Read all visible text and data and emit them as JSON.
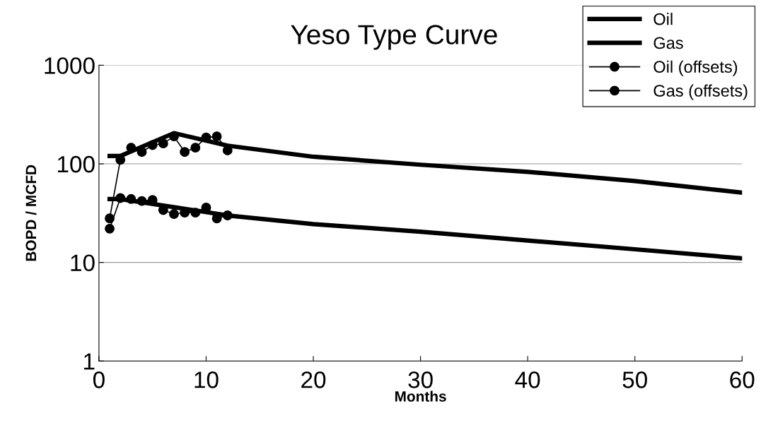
{
  "chart_data": {
    "type": "line",
    "title": "Yeso Type Curve",
    "xlabel": "Months",
    "ylabel": "BOPD / MCFD",
    "log": true,
    "xlim": [
      0,
      60
    ],
    "xticks": [
      0,
      10,
      20,
      30,
      40,
      50,
      60
    ],
    "ylim": [
      1,
      1000
    ],
    "yticks": [
      1,
      10,
      100,
      1000
    ],
    "grid": "y",
    "legend": "top right",
    "series": [
      {
        "name": "Oil",
        "color": "#000000",
        "marker": "none",
        "x": [
          1,
          2,
          7,
          12,
          20,
          30,
          40,
          50,
          60
        ],
        "values": [
          120,
          120,
          205,
          153,
          118,
          98,
          83,
          67,
          51
        ]
      },
      {
        "name": "Gas",
        "color": "#000000",
        "marker": "none",
        "x": [
          1,
          2,
          12,
          20,
          30,
          40,
          50,
          60
        ],
        "values": [
          44,
          44,
          30,
          24.5,
          20.5,
          16.7,
          13.6,
          11
        ]
      },
      {
        "name": "Oil (offsets)",
        "color": "#000000",
        "marker": "circle",
        "x": [
          1,
          2,
          3,
          4,
          5,
          6,
          7,
          8,
          9,
          10,
          11,
          12
        ],
        "values": [
          28,
          110,
          146,
          132,
          155,
          161,
          190,
          132,
          146,
          185,
          190,
          137
        ]
      },
      {
        "name": "Gas (offsets)",
        "color": "#000000",
        "marker": "circle",
        "x": [
          1,
          2,
          3,
          4,
          5,
          6,
          7,
          8,
          9,
          10,
          11,
          12
        ],
        "values": [
          22,
          45,
          44,
          42,
          43,
          34,
          31,
          32,
          32,
          36,
          28,
          30
        ]
      }
    ]
  }
}
